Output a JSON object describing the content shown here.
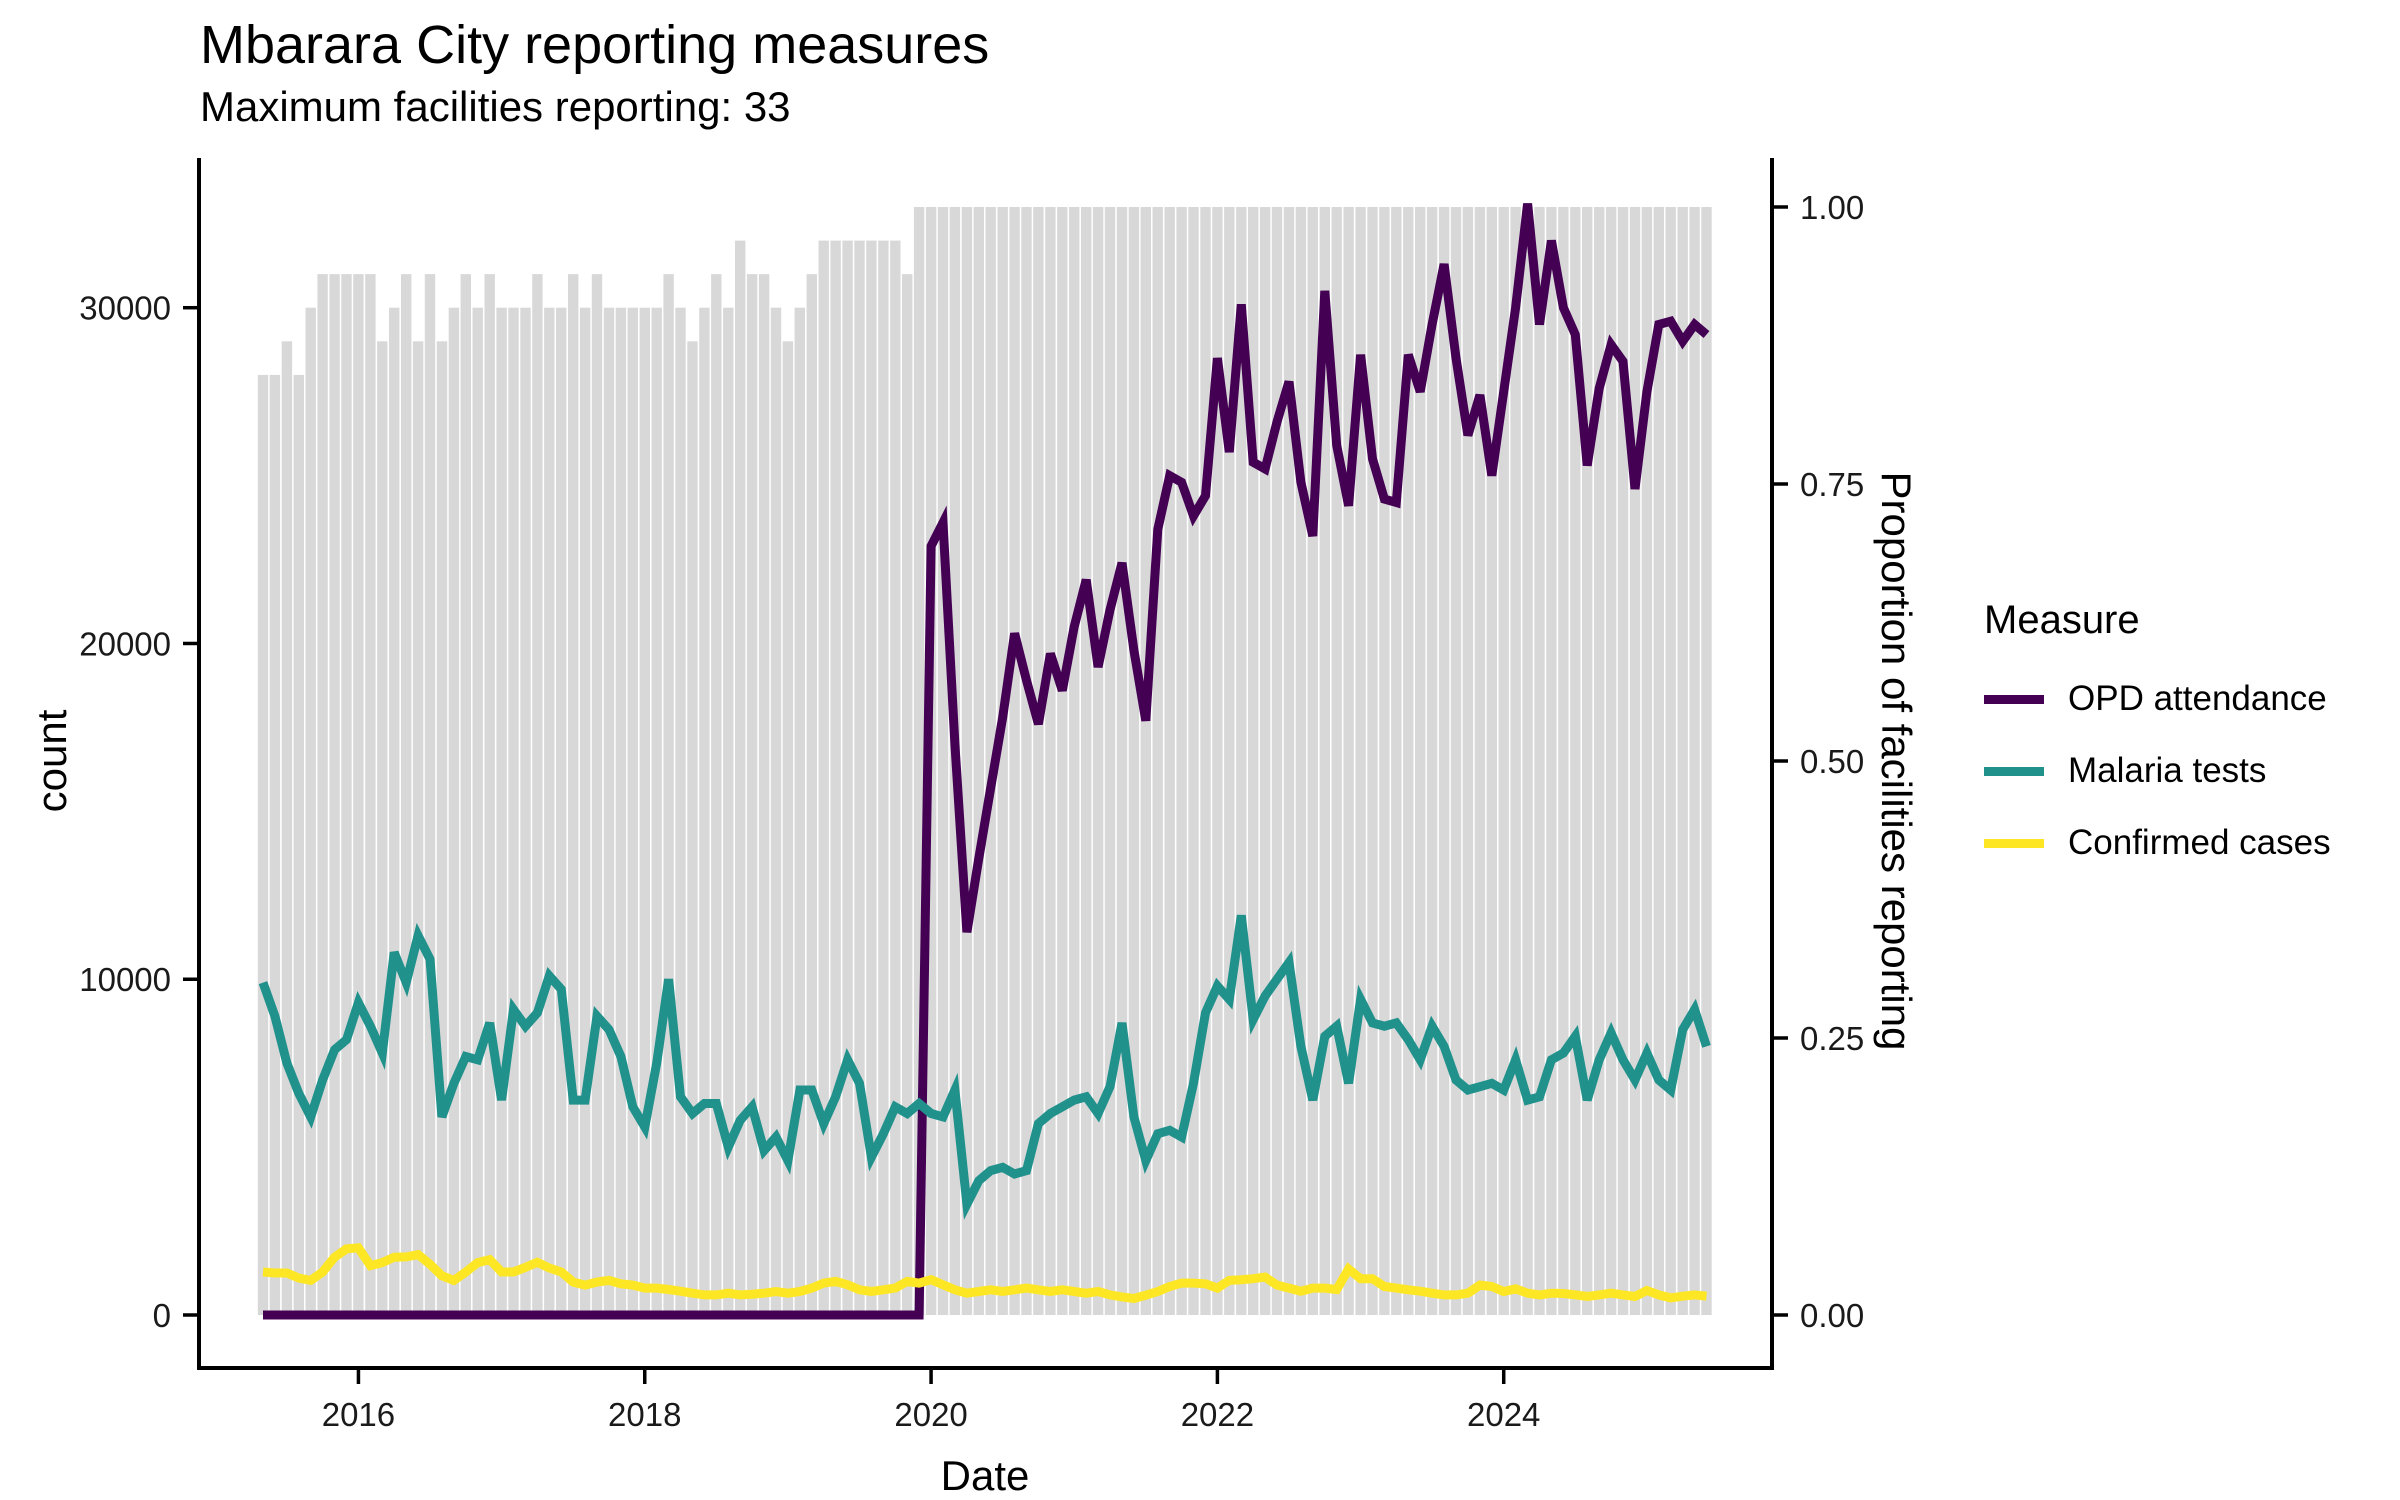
{
  "title": "Mbarara City reporting measures",
  "subtitle": "Maximum facilities reporting: 33",
  "colors": {
    "opd": "#440154",
    "malaria": "#21918c",
    "confirmed": "#fde725",
    "bars": "#d8d8d8",
    "axis": "#000000",
    "tick_text": "#1a1a1a"
  },
  "legend": {
    "title": "Measure"
  },
  "chart_data": {
    "type": "line+bar",
    "title": "Mbarara City reporting measures",
    "subtitle": "Maximum facilities reporting: 33",
    "x_start": "2015-05",
    "x_end": "2025-06",
    "n_points": 122,
    "x_axis": {
      "label": "Date",
      "ticks": [
        {
          "label": "2016",
          "month_index": 8
        },
        {
          "label": "2018",
          "month_index": 32
        },
        {
          "label": "2020",
          "month_index": 56
        },
        {
          "label": "2022",
          "month_index": 80
        },
        {
          "label": "2024",
          "month_index": 104
        }
      ]
    },
    "y_left": {
      "label": "count",
      "ticks": [
        {
          "label": "0",
          "value": 0
        },
        {
          "label": "10000",
          "value": 10000
        },
        {
          "label": "20000",
          "value": 20000
        },
        {
          "label": "30000",
          "value": 30000
        }
      ],
      "range": [
        0,
        33800
      ]
    },
    "y_right": {
      "label": "Proportion of facilities reporting",
      "scale_factor": 33000,
      "ticks": [
        {
          "label": "0.00",
          "value": 0
        },
        {
          "label": "0.25",
          "value": 0.25
        },
        {
          "label": "0.50",
          "value": 0.5
        },
        {
          "label": "0.75",
          "value": 0.75
        },
        {
          "label": "1.00",
          "value": 1.0
        }
      ]
    },
    "bars": {
      "name": "Proportion of facilities reporting",
      "color": "#d8d8d8",
      "max_facilities": 33,
      "facilities": [
        28,
        28,
        29,
        28,
        30,
        31,
        31,
        31,
        31,
        31,
        29,
        30,
        31,
        29,
        31,
        29,
        30,
        31,
        30,
        31,
        30,
        30,
        30,
        31,
        30,
        30,
        31,
        30,
        31,
        30,
        30,
        30,
        30,
        30,
        31,
        30,
        29,
        30,
        31,
        30,
        32,
        31,
        31,
        30,
        29,
        30,
        31,
        32,
        32,
        32,
        32,
        32,
        32,
        32,
        31,
        33,
        33,
        33,
        33,
        33,
        33,
        33,
        33,
        33,
        33,
        33,
        33,
        33,
        33,
        33,
        33,
        33,
        33,
        33,
        33,
        33,
        33,
        33,
        33,
        33,
        33,
        33,
        33,
        33,
        33,
        33,
        33,
        33,
        33,
        33,
        33,
        33,
        33,
        33,
        33,
        33,
        33,
        33,
        33,
        33,
        33,
        33,
        33,
        33,
        33,
        33,
        33,
        33,
        33,
        33,
        33,
        33,
        33,
        33,
        33,
        33,
        33,
        33,
        33,
        33,
        33,
        33
      ]
    },
    "series": [
      {
        "name": "OPD attendance",
        "color": "#440154",
        "values": [
          0,
          0,
          0,
          0,
          0,
          0,
          0,
          0,
          0,
          0,
          0,
          0,
          0,
          0,
          0,
          0,
          0,
          0,
          0,
          0,
          0,
          0,
          0,
          0,
          0,
          0,
          0,
          0,
          0,
          0,
          0,
          0,
          0,
          0,
          0,
          0,
          0,
          0,
          0,
          0,
          0,
          0,
          0,
          0,
          0,
          0,
          0,
          0,
          0,
          0,
          0,
          0,
          0,
          0,
          0,
          0,
          22900,
          23600,
          17000,
          11400,
          13600,
          15700,
          17800,
          20300,
          18900,
          17600,
          19700,
          18600,
          20500,
          21900,
          19300,
          21000,
          22400,
          19800,
          17700,
          23400,
          25000,
          24800,
          23800,
          24400,
          28500,
          25700,
          30100,
          25400,
          25200,
          26600,
          27800,
          24800,
          23200,
          30500,
          25900,
          24100,
          28600,
          25500,
          24300,
          24200,
          28600,
          27500,
          29500,
          31300,
          28500,
          26200,
          27400,
          25000,
          27500,
          30000,
          33100,
          29500,
          32000,
          30000,
          29200,
          25300,
          27600,
          28900,
          28400,
          24600,
          27500,
          29500,
          29600,
          29000,
          29500,
          29200
        ]
      },
      {
        "name": "Malaria tests",
        "color": "#21918c",
        "values": [
          9900,
          8900,
          7500,
          6600,
          5900,
          7000,
          7900,
          8200,
          9300,
          8600,
          7800,
          10800,
          9900,
          11300,
          10600,
          5900,
          6900,
          7700,
          7600,
          8700,
          6400,
          9100,
          8600,
          9000,
          10100,
          9700,
          6400,
          6400,
          8900,
          8500,
          7700,
          6200,
          5600,
          7500,
          10000,
          6500,
          6000,
          6300,
          6300,
          5000,
          5800,
          6200,
          4900,
          5300,
          4600,
          6700,
          6700,
          5700,
          6500,
          7600,
          6900,
          4700,
          5400,
          6200,
          6000,
          6300,
          6000,
          5900,
          6700,
          3300,
          4000,
          4300,
          4400,
          4200,
          4300,
          5700,
          6000,
          6200,
          6400,
          6500,
          6000,
          6800,
          8700,
          5900,
          4600,
          5400,
          5500,
          5300,
          6900,
          9000,
          9800,
          9400,
          11900,
          8800,
          9500,
          10000,
          10500,
          8000,
          6400,
          8300,
          8600,
          6900,
          9400,
          8700,
          8600,
          8700,
          8200,
          7600,
          8600,
          8000,
          7000,
          6700,
          6800,
          6900,
          6700,
          7600,
          6400,
          6500,
          7600,
          7800,
          8300,
          6400,
          7600,
          8400,
          7600,
          7000,
          7800,
          7000,
          6700,
          8500,
          9100,
          8000
        ]
      },
      {
        "name": "Confirmed cases",
        "color": "#fde725",
        "values": [
          1280,
          1250,
          1250,
          1100,
          1030,
          1280,
          1720,
          1970,
          2000,
          1470,
          1560,
          1720,
          1730,
          1800,
          1510,
          1170,
          1030,
          1280,
          1560,
          1650,
          1280,
          1280,
          1420,
          1570,
          1400,
          1280,
          980,
          890,
          980,
          1030,
          930,
          890,
          800,
          800,
          760,
          710,
          650,
          600,
          600,
          650,
          600,
          620,
          650,
          700,
          650,
          700,
          800,
          950,
          1000,
          900,
          750,
          700,
          750,
          800,
          1000,
          950,
          1050,
          900,
          750,
          650,
          700,
          750,
          700,
          750,
          800,
          750,
          700,
          750,
          700,
          650,
          700,
          600,
          540,
          490,
          590,
          700,
          850,
          950,
          950,
          930,
          800,
          1030,
          1050,
          1080,
          1130,
          890,
          800,
          710,
          800,
          800,
          760,
          1370,
          1080,
          1080,
          850,
          800,
          750,
          710,
          650,
          600,
          600,
          650,
          890,
          850,
          700,
          780,
          650,
          600,
          650,
          640,
          600,
          550,
          600,
          650,
          600,
          550,
          730,
          600,
          510,
          560,
          600,
          560
        ]
      }
    ]
  }
}
